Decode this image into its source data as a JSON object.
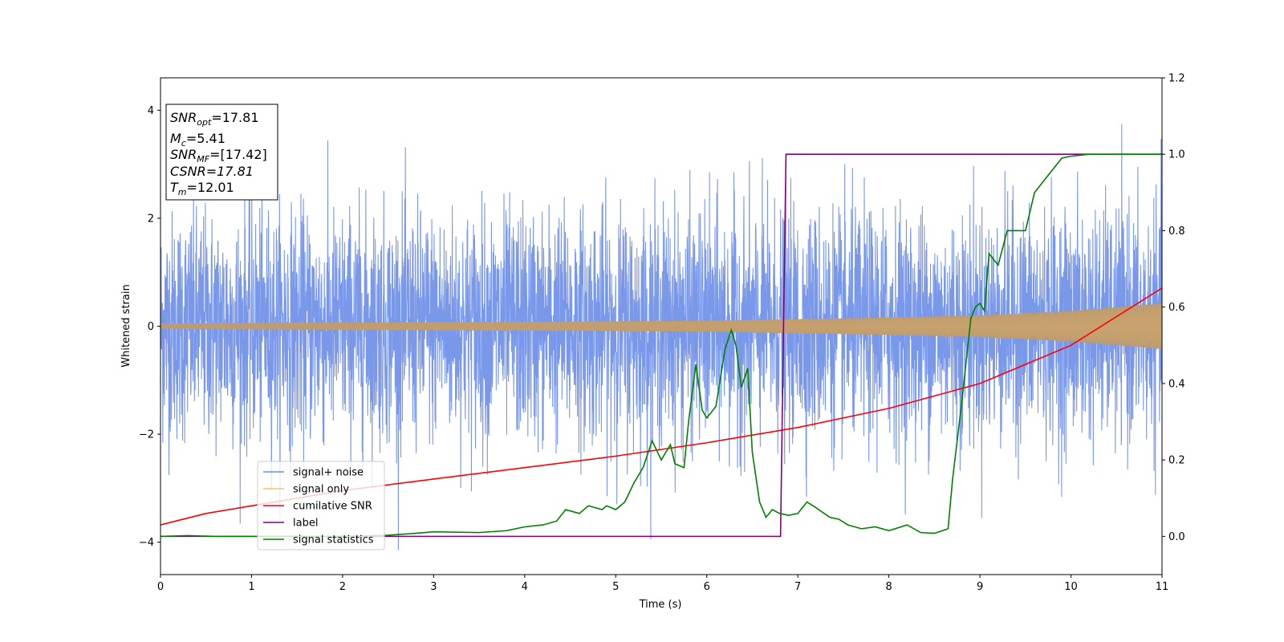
{
  "chart_data": {
    "type": "line",
    "xlabel": "Time (s)",
    "ylabel": "Whitened strain",
    "xlim": [
      0,
      11
    ],
    "ylim": [
      -4.6,
      4.6
    ],
    "y2lim": [
      -0.1,
      1.2
    ],
    "xticks": [
      "0",
      "1",
      "2",
      "3",
      "4",
      "5",
      "6",
      "7",
      "8",
      "9",
      "10",
      "11"
    ],
    "yticks": [
      "4",
      "2",
      "0",
      "−2",
      "−4"
    ],
    "y2ticks": [
      "1.2",
      "1.0",
      "0.8",
      "0.6",
      "0.4",
      "0.2",
      "0.0"
    ],
    "grid": false,
    "legend_position": "lower-left",
    "annotation": {
      "snr_opt": "=17.81",
      "mc": "=5.41",
      "snr_mf": "=[17.42]",
      "csnr": "CSNR=17.81",
      "tm": "=12.01"
    },
    "series": [
      {
        "name": "signal+ noise",
        "color": "#6b8de8",
        "axis": "left",
        "description": "noise band approx ±2.5 with peaks to ±4.1"
      },
      {
        "name": "signal only",
        "color": "#ffc060",
        "axis": "left",
        "envelope": {
          "t": [
            0,
            4,
            6,
            8,
            9,
            10,
            11
          ],
          "amp": [
            0.05,
            0.08,
            0.1,
            0.16,
            0.2,
            0.28,
            0.42
          ]
        }
      },
      {
        "name": "cumilative SNR",
        "color": "#ff0000",
        "axis": "right",
        "x": [
          0,
          0.5,
          1,
          2,
          3,
          4,
          5,
          6,
          7,
          8,
          9,
          10,
          11
        ],
        "y": [
          0.03,
          0.06,
          0.08,
          0.12,
          0.15,
          0.18,
          0.21,
          0.245,
          0.285,
          0.335,
          0.4,
          0.5,
          0.65
        ]
      },
      {
        "name": "label",
        "color": "#800080",
        "axis": "right",
        "x": [
          0,
          6.81,
          6.87,
          11
        ],
        "y": [
          0,
          0,
          1,
          1
        ]
      },
      {
        "name": "signal statistics",
        "color": "#008000",
        "axis": "right",
        "x": [
          0,
          0.3,
          0.6,
          1.0,
          1.5,
          2.0,
          2.5,
          2.8,
          3.0,
          3.5,
          3.8,
          4.0,
          4.2,
          4.35,
          4.45,
          4.6,
          4.7,
          4.85,
          4.9,
          5.0,
          5.1,
          5.2,
          5.3,
          5.4,
          5.5,
          5.6,
          5.65,
          5.75,
          5.8,
          5.88,
          5.95,
          6.0,
          6.1,
          6.2,
          6.27,
          6.32,
          6.38,
          6.45,
          6.5,
          6.58,
          6.65,
          6.72,
          6.8,
          6.9,
          7.0,
          7.1,
          7.2,
          7.35,
          7.45,
          7.55,
          7.7,
          7.85,
          8.0,
          8.2,
          8.35,
          8.5,
          8.65,
          8.7,
          8.8,
          8.9,
          8.95,
          9.0,
          9.05,
          9.1,
          9.2,
          9.3,
          9.4,
          9.5,
          9.6,
          9.7,
          9.8,
          9.9,
          10.0,
          10.2,
          10.5,
          11.0
        ],
        "y": [
          0.0,
          0.002,
          0.0,
          0.0,
          0.0,
          0.0,
          0.003,
          0.008,
          0.012,
          0.01,
          0.015,
          0.025,
          0.03,
          0.04,
          0.07,
          0.06,
          0.08,
          0.07,
          0.08,
          0.07,
          0.09,
          0.14,
          0.18,
          0.25,
          0.2,
          0.24,
          0.19,
          0.18,
          0.3,
          0.45,
          0.33,
          0.31,
          0.34,
          0.49,
          0.54,
          0.5,
          0.39,
          0.44,
          0.22,
          0.09,
          0.05,
          0.07,
          0.06,
          0.055,
          0.06,
          0.09,
          0.075,
          0.05,
          0.045,
          0.03,
          0.02,
          0.025,
          0.015,
          0.03,
          0.01,
          0.008,
          0.02,
          0.15,
          0.35,
          0.57,
          0.6,
          0.61,
          0.59,
          0.74,
          0.71,
          0.8,
          0.8,
          0.8,
          0.9,
          0.93,
          0.96,
          0.99,
          0.995,
          1.0,
          1.0,
          1.0
        ]
      }
    ]
  }
}
